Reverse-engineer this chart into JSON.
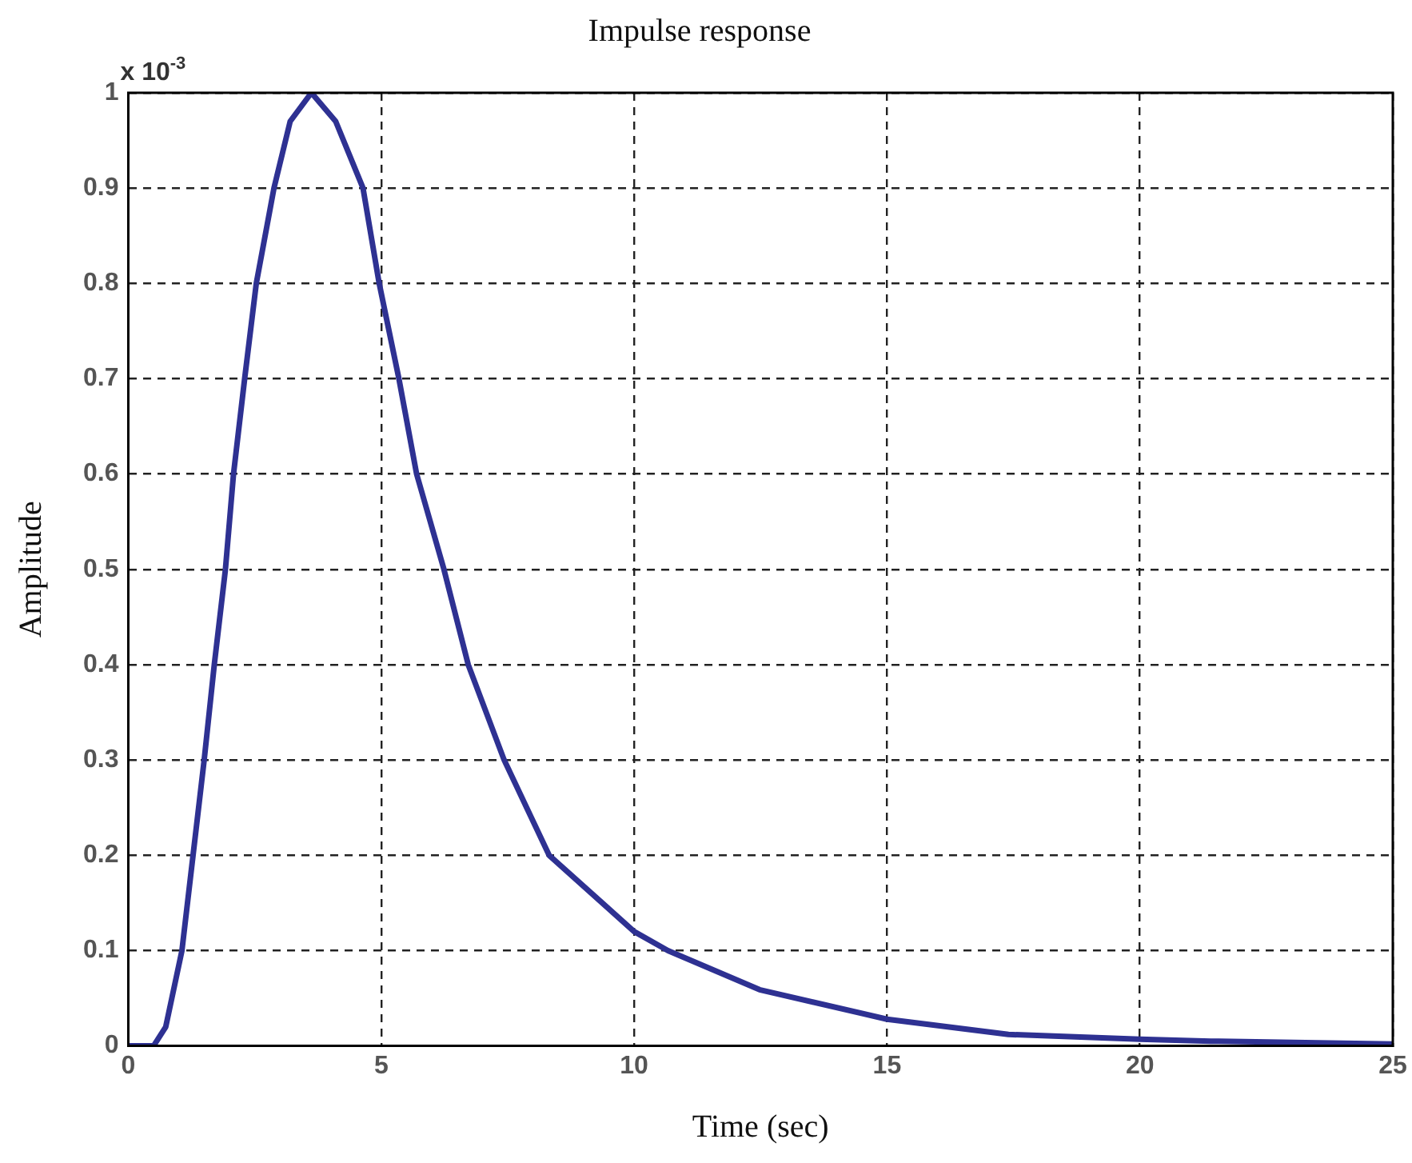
{
  "chart_data": {
    "type": "line",
    "title": "Impulse response",
    "xlabel": "Time (sec)",
    "ylabel": "Amplitude",
    "annotations": [
      "x 10$^{-3}$"
    ],
    "x": [
      0,
      0.5,
      0.74,
      1.06,
      1.28,
      1.5,
      1.7,
      1.92,
      2.08,
      2.3,
      2.53,
      2.88,
      3.2,
      3.62,
      4.1,
      4.64,
      4.96,
      5.35,
      5.7,
      6.24,
      6.72,
      7.43,
      8.32,
      10.0,
      10.67,
      12.48,
      15,
      17.4,
      20,
      21.4,
      25
    ],
    "series": [
      {
        "color": "#2e3192",
        "values": [
          0,
          0,
          0.02,
          0.1,
          0.2,
          0.3,
          0.4,
          0.5,
          0.6,
          0.7,
          0.8,
          0.9,
          0.97,
          1.0,
          0.97,
          0.9,
          0.8,
          0.7,
          0.6,
          0.5,
          0.4,
          0.3,
          0.2,
          0.12,
          0.1,
          0.059,
          0.028,
          0.012,
          0.007,
          0.005,
          0.002
        ]
      }
    ],
    "xlim": [
      0,
      25
    ],
    "xticks": [
      0,
      5,
      10,
      15,
      20,
      25
    ],
    "ylim": [
      0,
      1
    ],
    "yticks": [
      0,
      0.1,
      0.2,
      0.3,
      0.4,
      0.5,
      0.6,
      0.7,
      0.8,
      0.9,
      1
    ],
    "grid": true,
    "marker": "none",
    "line_style": "solid",
    "legend": false
  }
}
